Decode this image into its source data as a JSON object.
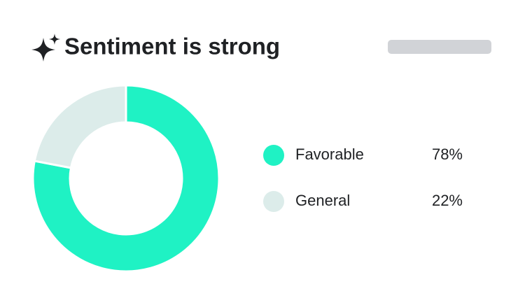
{
  "chart_data": {
    "type": "pie",
    "donut": true,
    "title": "Sentiment is strong",
    "categories": [
      "Favorable",
      "General"
    ],
    "values": [
      78,
      22
    ],
    "value_labels": [
      "78%",
      "22%"
    ],
    "colors": [
      "#1ff2c4",
      "#dcecea"
    ]
  }
}
